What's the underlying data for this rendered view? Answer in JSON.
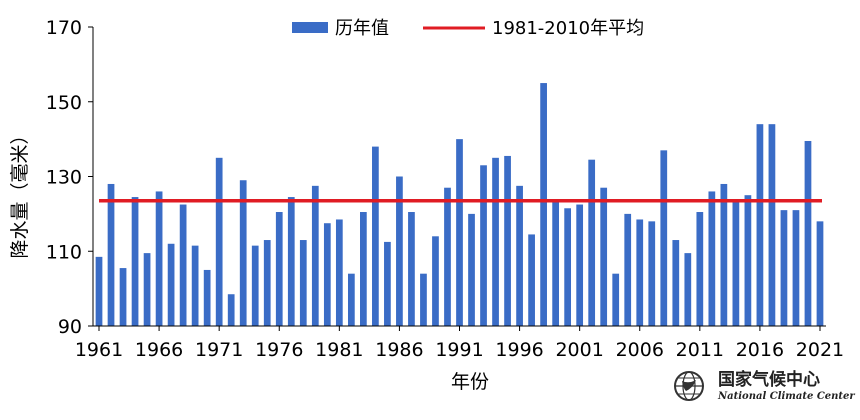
{
  "chart_data": {
    "type": "bar",
    "ylabel": "降水量（毫米）",
    "xlabel": "年份",
    "ylim": [
      90,
      170
    ],
    "yticks": [
      90,
      110,
      130,
      150,
      170
    ],
    "xticks": [
      1961,
      1966,
      1971,
      1976,
      1981,
      1986,
      1991,
      1996,
      2001,
      2006,
      2011,
      2016,
      2021
    ],
    "years": [
      1961,
      1962,
      1963,
      1964,
      1965,
      1966,
      1967,
      1968,
      1969,
      1970,
      1971,
      1972,
      1973,
      1974,
      1975,
      1976,
      1977,
      1978,
      1979,
      1980,
      1981,
      1982,
      1983,
      1984,
      1985,
      1986,
      1987,
      1988,
      1989,
      1990,
      1991,
      1992,
      1993,
      1994,
      1995,
      1996,
      1997,
      1998,
      1999,
      2000,
      2001,
      2002,
      2003,
      2004,
      2005,
      2006,
      2007,
      2008,
      2009,
      2010,
      2011,
      2012,
      2013,
      2014,
      2015,
      2016,
      2017,
      2018,
      2019,
      2020,
      2021
    ],
    "series": [
      {
        "name": "历年值",
        "color": "#3a6cc6",
        "values": [
          108.5,
          128,
          105.5,
          124.5,
          109.5,
          126,
          112,
          122.5,
          111.5,
          105,
          135,
          98.5,
          129,
          111.5,
          113,
          120.5,
          124.5,
          113,
          127.5,
          117.5,
          118.5,
          104,
          120.5,
          138,
          112.5,
          130,
          120.5,
          104,
          114,
          127,
          140,
          120,
          133,
          135,
          135.5,
          127.5,
          114.5,
          155,
          123.5,
          121.5,
          122.5,
          134.5,
          127,
          104,
          120,
          118.5,
          118,
          137,
          113,
          109.5,
          120.5,
          126,
          128,
          123.5,
          125,
          144,
          144,
          121,
          121,
          139.5,
          118
        ]
      }
    ],
    "reference_line": {
      "name": "1981-2010年平均",
      "value": 123.5,
      "color": "#e01c24"
    },
    "grid": false,
    "legend_position": "top-center"
  },
  "logo": {
    "name_cn": "国家气候中心",
    "name_en": "National Climate Center",
    "icon": "wmo-globe-icon"
  }
}
